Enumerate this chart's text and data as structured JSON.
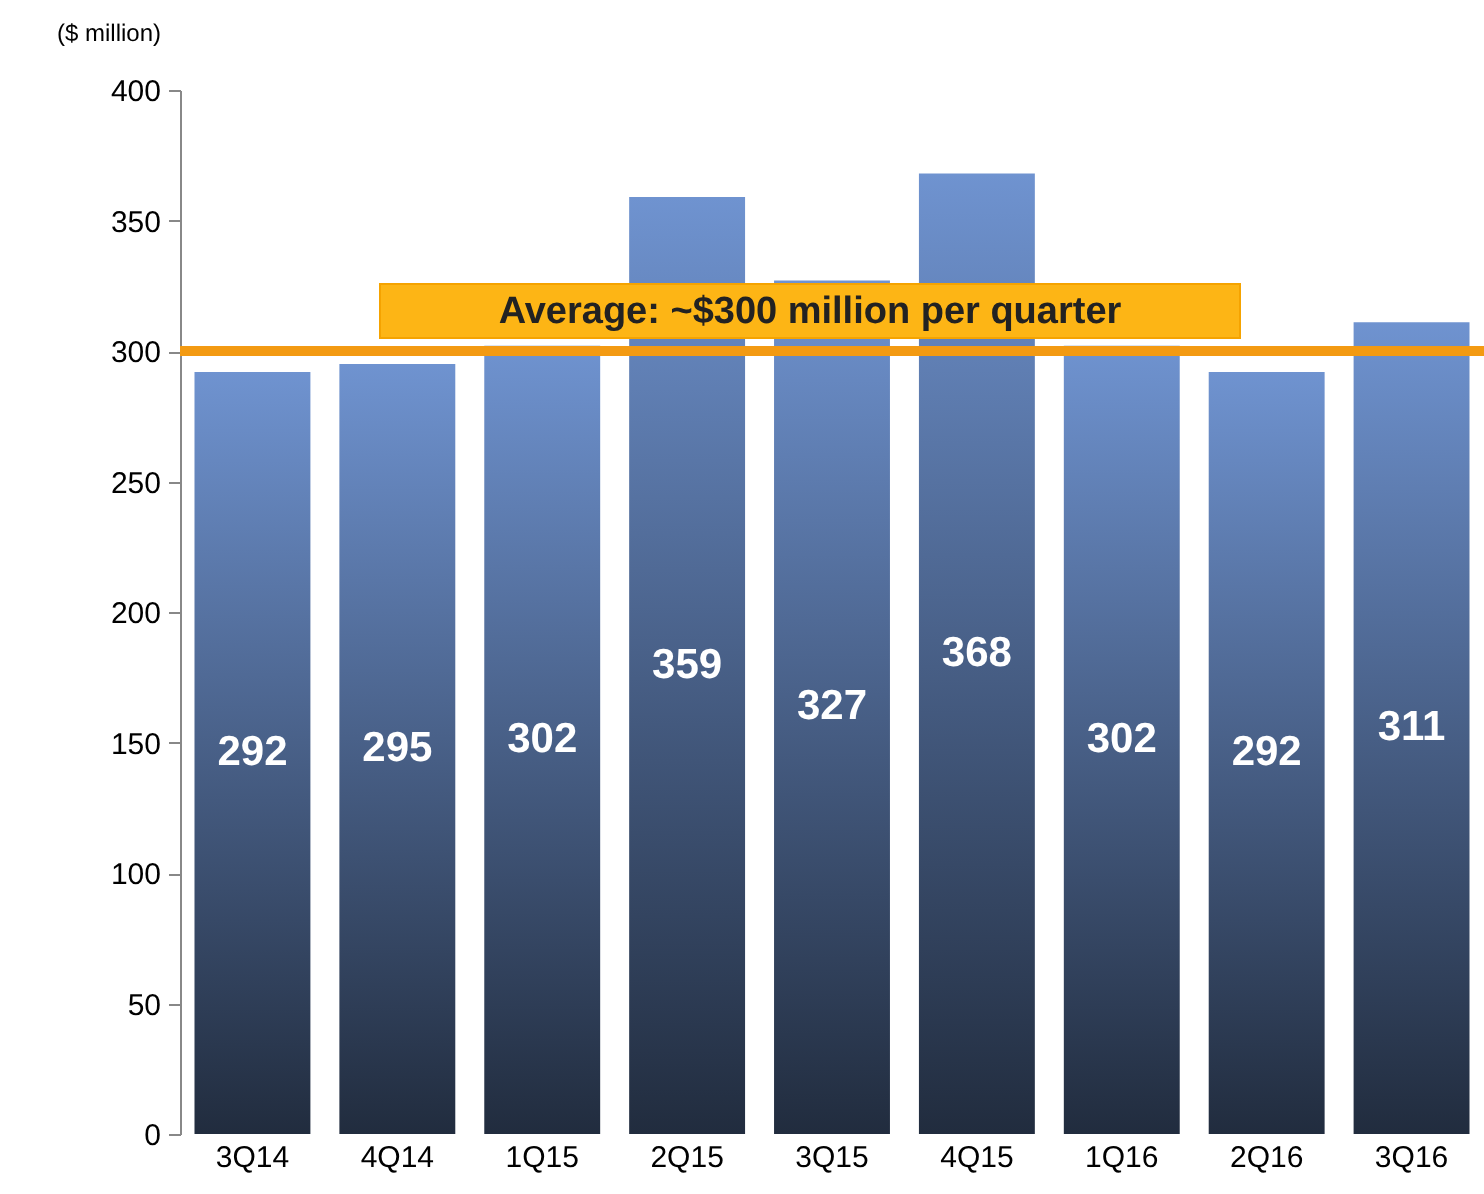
{
  "chart_data": {
    "type": "bar",
    "ylabel": "($ million)",
    "categories": [
      "3Q14",
      "4Q14",
      "1Q15",
      "2Q15",
      "3Q15",
      "4Q15",
      "1Q16",
      "2Q16",
      "3Q16"
    ],
    "values": [
      292,
      295,
      302,
      359,
      327,
      368,
      302,
      292,
      311
    ],
    "color": "#6f93d0",
    "ylim": [
      0,
      400
    ],
    "yticks": [
      0,
      50,
      100,
      150,
      200,
      250,
      300,
      350,
      400
    ],
    "grid": false,
    "data_labels": true,
    "ref_lines": [
      {
        "axis": "y",
        "value": 300,
        "label": "Average: ~$300 million per quarter",
        "color": "#f39a12"
      }
    ]
  }
}
